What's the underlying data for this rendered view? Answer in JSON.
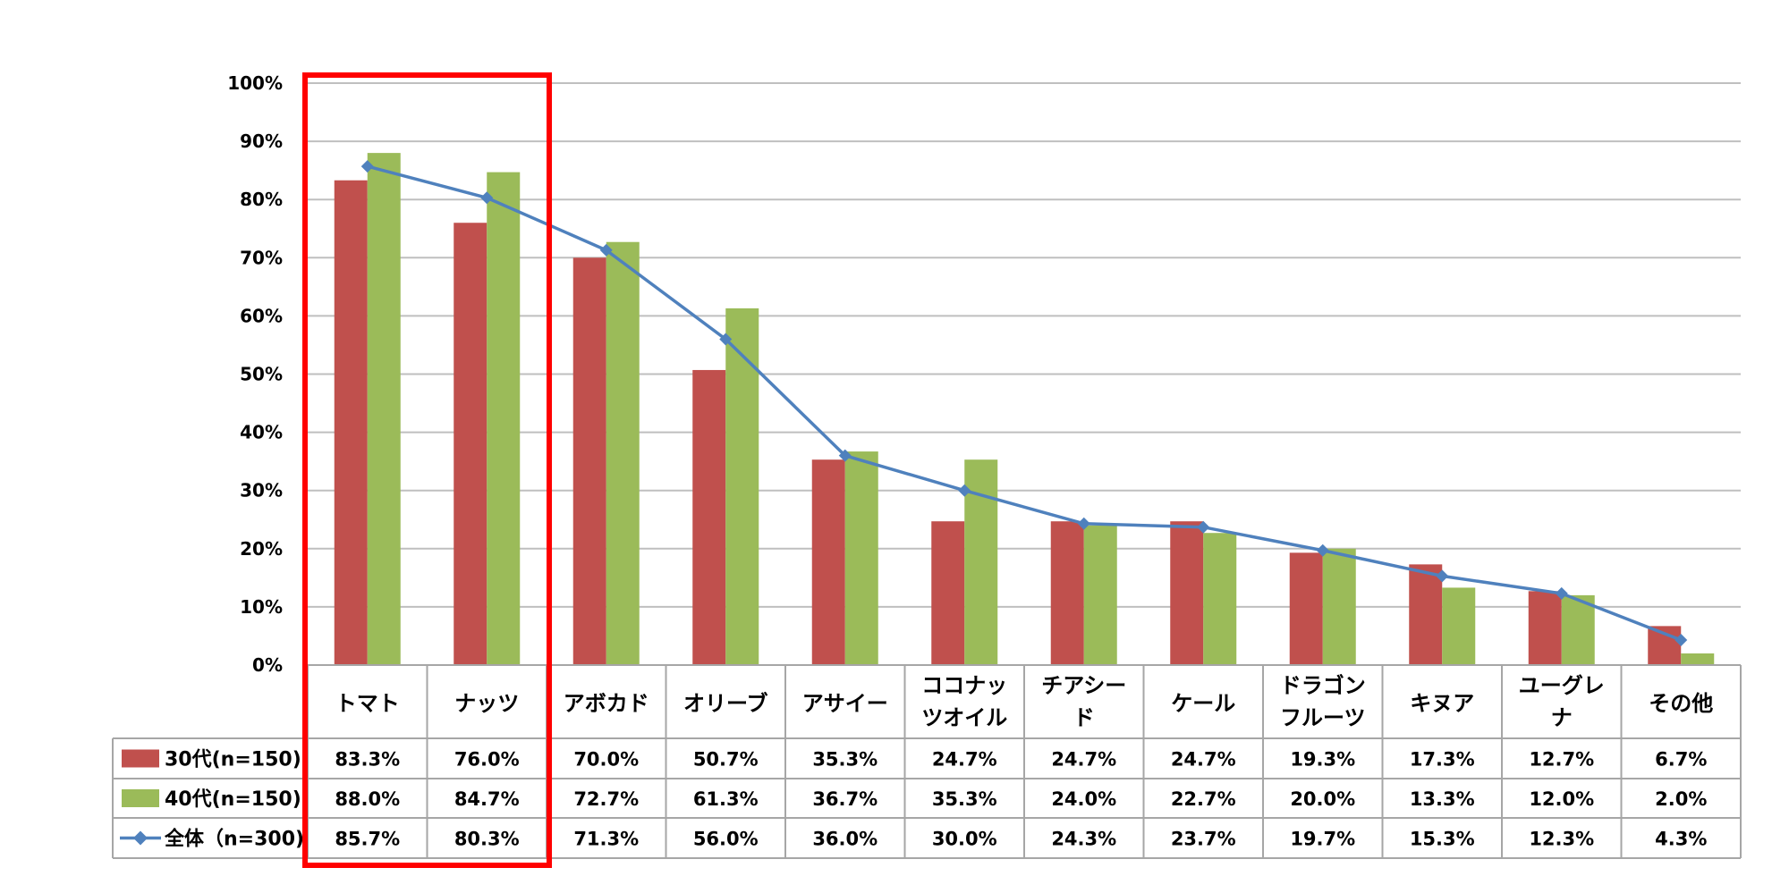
{
  "chart_data": {
    "type": "bar",
    "categories": [
      [
        "トマト"
      ],
      [
        "ナッツ"
      ],
      [
        "アボカド"
      ],
      [
        "オリーブ"
      ],
      [
        "アサイー"
      ],
      [
        "ココナッ",
        "ツオイル"
      ],
      [
        "チアシー",
        "ド"
      ],
      [
        "ケール"
      ],
      [
        "ドラゴン",
        "フルーツ"
      ],
      [
        "キヌア"
      ],
      [
        "ユーグレ",
        "ナ"
      ],
      [
        "その他"
      ]
    ],
    "series": [
      {
        "name": "30代(n=150)",
        "kind": "bar",
        "color": "#C0504D",
        "values": [
          83.3,
          76.0,
          70.0,
          50.7,
          35.3,
          24.7,
          24.7,
          24.7,
          19.3,
          17.3,
          12.7,
          6.7
        ],
        "labels": [
          "83.3%",
          "76.0%",
          "70.0%",
          "50.7%",
          "35.3%",
          "24.7%",
          "24.7%",
          "24.7%",
          "19.3%",
          "17.3%",
          "12.7%",
          "6.7%"
        ]
      },
      {
        "name": "40代(n=150)",
        "kind": "bar",
        "color": "#9BBB59",
        "values": [
          88.0,
          84.7,
          72.7,
          61.3,
          36.7,
          35.3,
          24.0,
          22.7,
          20.0,
          13.3,
          12.0,
          2.0
        ],
        "labels": [
          "88.0%",
          "84.7%",
          "72.7%",
          "61.3%",
          "36.7%",
          "35.3%",
          "24.0%",
          "22.7%",
          "20.0%",
          "13.3%",
          "12.0%",
          "2.0%"
        ]
      },
      {
        "name": "全体（n=300)",
        "kind": "line",
        "color": "#4F81BD",
        "values": [
          85.7,
          80.3,
          71.3,
          56.0,
          36.0,
          30.0,
          24.3,
          23.7,
          19.7,
          15.3,
          12.3,
          4.3
        ],
        "labels": [
          "85.7%",
          "80.3%",
          "71.3%",
          "56.0%",
          "36.0%",
          "30.0%",
          "24.3%",
          "23.7%",
          "19.7%",
          "15.3%",
          "12.3%",
          "4.3%"
        ]
      }
    ],
    "ylim": [
      0,
      100
    ],
    "yticks": [
      "0%",
      "10%",
      "20%",
      "30%",
      "40%",
      "50%",
      "60%",
      "70%",
      "80%",
      "90%",
      "100%"
    ],
    "grid": true,
    "legend": "data-table",
    "highlight": {
      "categories": [
        0,
        1
      ],
      "color": "#FF0000"
    },
    "gridline_color": "#BFBFBF",
    "table_border_color": "#A6A6A6"
  }
}
